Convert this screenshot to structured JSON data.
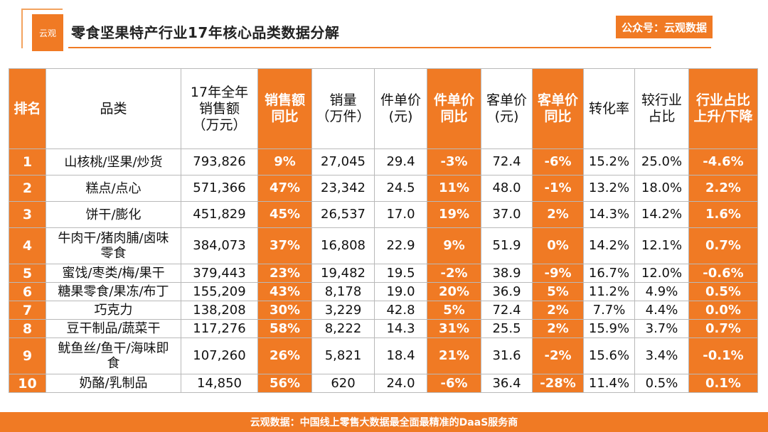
{
  "brand": {
    "logo_text": "云观"
  },
  "header": {
    "title": "零食坚果特产行业17年核心品类数据分解",
    "account": "公众号：云观数据"
  },
  "table": {
    "columns": [
      "排名",
      "品类",
      "17年全年\n销售额\n（万元）",
      "销售额\n同比",
      "销量\n（万件）",
      "件单价\n(元)",
      "件单价\n同比",
      "客单价\n(元)",
      "客单价\n同比",
      "转化率",
      "较行业\n占比",
      "行业占比\n上升/下降"
    ],
    "rows": [
      [
        "1",
        "山核桃/坚果/炒货",
        "793,826",
        "9%",
        "27,045",
        "29.4",
        "-3%",
        "72.4",
        "-6%",
        "15.2%",
        "25.0%",
        "-4.6%"
      ],
      [
        "2",
        "糕点/点心",
        "571,366",
        "47%",
        "23,342",
        "24.5",
        "11%",
        "48.0",
        "-1%",
        "13.2%",
        "18.0%",
        "2.2%"
      ],
      [
        "3",
        "饼干/膨化",
        "451,829",
        "45%",
        "26,537",
        "17.0",
        "19%",
        "37.0",
        "2%",
        "14.3%",
        "14.2%",
        "1.6%"
      ],
      [
        "4",
        "牛肉干/猪肉脯/卤味\n零食",
        "384,073",
        "37%",
        "16,808",
        "22.9",
        "9%",
        "51.9",
        "0%",
        "14.2%",
        "12.1%",
        "0.7%"
      ],
      [
        "5",
        "蜜饯/枣类/梅/果干",
        "379,443",
        "23%",
        "19,482",
        "19.5",
        "-2%",
        "38.9",
        "-9%",
        "16.7%",
        "12.0%",
        "-0.6%"
      ],
      [
        "6",
        "糖果零食/果冻/布丁",
        "155,209",
        "43%",
        "8,178",
        "19.0",
        "20%",
        "36.9",
        "5%",
        "11.2%",
        "4.9%",
        "0.5%"
      ],
      [
        "7",
        "巧克力",
        "138,208",
        "30%",
        "3,229",
        "42.8",
        "5%",
        "72.4",
        "2%",
        "7.7%",
        "4.4%",
        "0.0%"
      ],
      [
        "8",
        "豆干制品/蔬菜干",
        "117,276",
        "58%",
        "8,222",
        "14.3",
        "31%",
        "25.5",
        "2%",
        "15.9%",
        "3.7%",
        "0.7%"
      ],
      [
        "9",
        "鱿鱼丝/鱼干/海味即\n食",
        "107,260",
        "26%",
        "5,821",
        "18.4",
        "21%",
        "31.6",
        "-2%",
        "15.6%",
        "3.4%",
        "-0.1%"
      ],
      [
        "10",
        "奶酪/乳制品",
        "14,850",
        "56%",
        "620",
        "24.0",
        "-6%",
        "36.4",
        "-28%",
        "11.4%",
        "0.5%",
        "0.1%"
      ]
    ]
  },
  "footer": {
    "text": "云观数据：中国线上零售大数据最全面最精准的DaaS服务商"
  },
  "colors": {
    "accent": "#f07a24"
  }
}
